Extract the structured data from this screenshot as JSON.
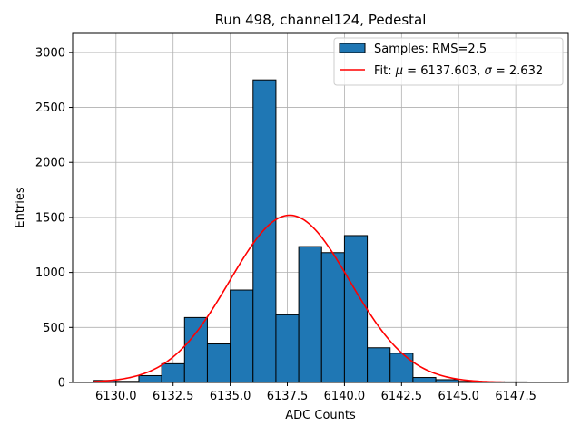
{
  "chart_data": {
    "type": "bar",
    "title": "Run 498, channel124, Pedestal",
    "xlabel": "ADC Counts",
    "ylabel": "Entries",
    "xlim": [
      6128.1,
      6149.8
    ],
    "ylim": [
      0,
      3180
    ],
    "grid": true,
    "legend_position": "top-right",
    "x_ticks": [
      6130.0,
      6132.5,
      6135.0,
      6137.5,
      6140.0,
      6142.5,
      6145.0,
      6147.5
    ],
    "x_tick_labels": [
      "6130.0",
      "6132.5",
      "6135.0",
      "6137.5",
      "6140.0",
      "6142.5",
      "6145.0",
      "6147.5"
    ],
    "y_ticks": [
      0,
      500,
      1000,
      1500,
      2000,
      2500,
      3000
    ],
    "y_tick_labels": [
      "0",
      "500",
      "1000",
      "1500",
      "2000",
      "2500",
      "3000"
    ],
    "bin_width": 1.0,
    "bin_edges_start": 6129.0,
    "values": [
      18,
      10,
      62,
      170,
      590,
      350,
      840,
      2750,
      615,
      1235,
      1180,
      1335,
      315,
      265,
      45,
      25,
      10,
      5,
      5
    ],
    "bar_color": "#1f77b4",
    "fit": {
      "mu": 6137.603,
      "sigma": 2.632,
      "amplitude": 1520,
      "x_start": 6129.0,
      "x_end": 6147.0,
      "color": "#ff0000"
    },
    "legend": [
      {
        "label": "Samples: RMS=2.5",
        "kind": "patch"
      },
      {
        "label_prefix": "Fit: ",
        "mu_symbol": "μ",
        "mu_text": " = 6137.603, ",
        "sigma_symbol": "σ",
        "sigma_text": " = 2.632",
        "kind": "line"
      }
    ]
  }
}
